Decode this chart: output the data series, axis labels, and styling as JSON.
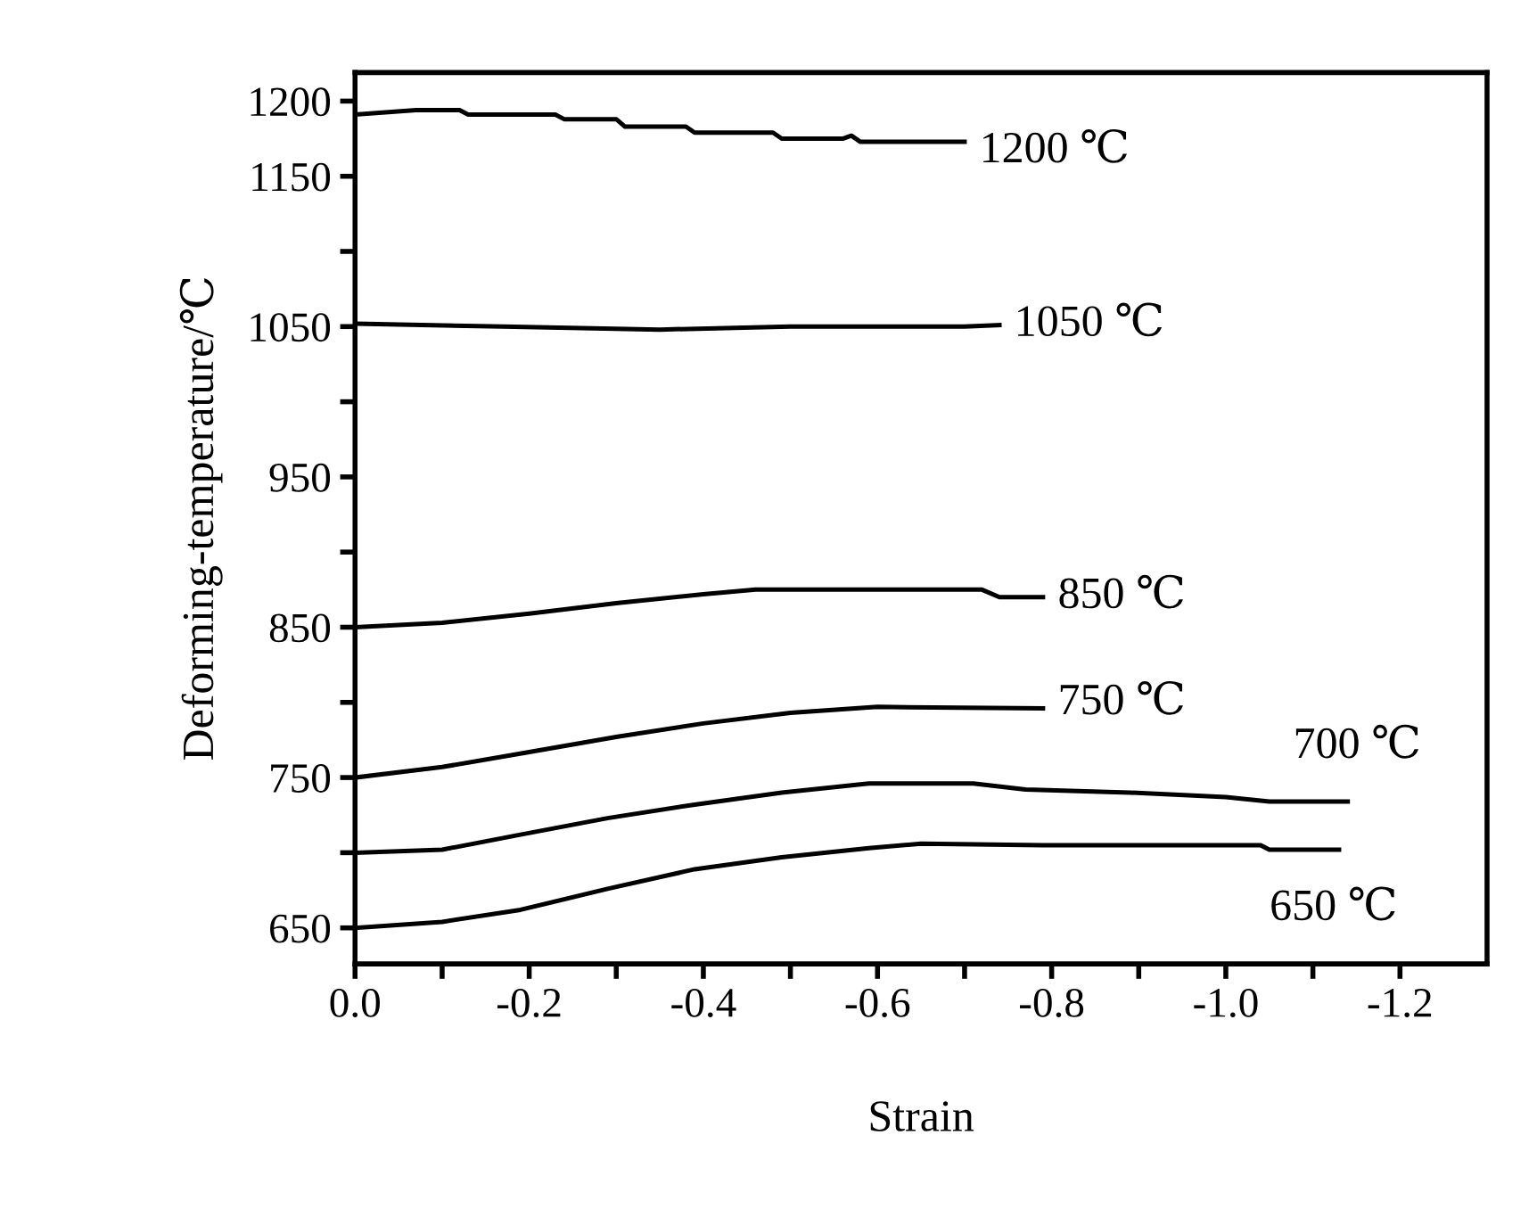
{
  "chart_data": {
    "type": "line",
    "xlabel": "Strain",
    "ylabel": "Deforming-temperature/℃",
    "xlim": [
      0,
      -1.3
    ],
    "ylim": [
      626,
      1219
    ],
    "xticks": [
      {
        "value": 0,
        "label": "0.0"
      },
      {
        "value": -0.1,
        "label": null
      },
      {
        "value": -0.2,
        "label": "-0.2"
      },
      {
        "value": -0.3,
        "label": null
      },
      {
        "value": -0.4,
        "label": "-0.4"
      },
      {
        "value": -0.5,
        "label": null
      },
      {
        "value": -0.6,
        "label": "-0.6"
      },
      {
        "value": -0.7,
        "label": null
      },
      {
        "value": -0.8,
        "label": "-0.8"
      },
      {
        "value": -0.9,
        "label": null
      },
      {
        "value": -1.0,
        "label": "-1.0"
      },
      {
        "value": -1.1,
        "label": null
      },
      {
        "value": -1.2,
        "label": "-1.2"
      }
    ],
    "yticks": [
      650,
      {
        "value": 700,
        "label": null
      },
      750,
      {
        "value": 800,
        "label": null
      },
      850,
      {
        "value": 900,
        "label": null
      },
      950,
      {
        "value": 1000,
        "label": null
      },
      1050,
      {
        "value": 1100,
        "label": null
      },
      1150,
      1200
    ],
    "grid": false,
    "legend": false,
    "marker": "none",
    "line_style": "solid",
    "series": [
      {
        "name": "1200 ℃",
        "color": "#000000",
        "x": [
          0,
          -0.07,
          -0.12,
          -0.13,
          -0.23,
          -0.24,
          -0.3,
          -0.31,
          -0.38,
          -0.39,
          -0.48,
          -0.49,
          -0.56,
          -0.57,
          -0.58,
          -0.7
        ],
        "values": [
          1191,
          1194,
          1194,
          1191,
          1191,
          1188,
          1188,
          1183,
          1183,
          1179,
          1179,
          1175,
          1175,
          1177,
          1173,
          1173
        ]
      },
      {
        "name": "1050 ℃",
        "color": "#000000",
        "x": [
          0,
          -0.17,
          -0.35,
          -0.5,
          -0.7,
          -0.74
        ],
        "values": [
          1052,
          1050,
          1048,
          1050,
          1050,
          1051
        ]
      },
      {
        "name": "850 ℃",
        "color": "#000000",
        "x": [
          0,
          -0.1,
          -0.2,
          -0.3,
          -0.4,
          -0.46,
          -0.72,
          -0.74,
          -0.79
        ],
        "values": [
          850,
          853,
          859,
          866,
          872,
          875,
          875,
          870,
          870
        ]
      },
      {
        "name": "750 ℃",
        "color": "#000000",
        "x": [
          0,
          -0.1,
          -0.2,
          -0.3,
          -0.4,
          -0.5,
          -0.6,
          -0.79
        ],
        "values": [
          750,
          757,
          767,
          777,
          786,
          793,
          797,
          796
        ]
      },
      {
        "name": "700 ℃",
        "color": "#000000",
        "x": [
          0,
          -0.1,
          -0.19,
          -0.29,
          -0.39,
          -0.49,
          -0.59,
          -0.71,
          -0.77,
          -0.89,
          -1.0,
          -1.05,
          -1.14
        ],
        "values": [
          700,
          702,
          712,
          723,
          732,
          740,
          746,
          746,
          742,
          740,
          737,
          734,
          734
        ]
      },
      {
        "name": "650 ℃",
        "color": "#000000",
        "x": [
          0,
          -0.1,
          -0.19,
          -0.29,
          -0.39,
          -0.49,
          -0.59,
          -0.65,
          -0.79,
          -1.04,
          -1.05,
          -1.13
        ],
        "values": [
          650,
          654,
          662,
          676,
          689,
          697,
          703,
          706,
          705,
          705,
          702,
          702
        ]
      }
    ]
  }
}
